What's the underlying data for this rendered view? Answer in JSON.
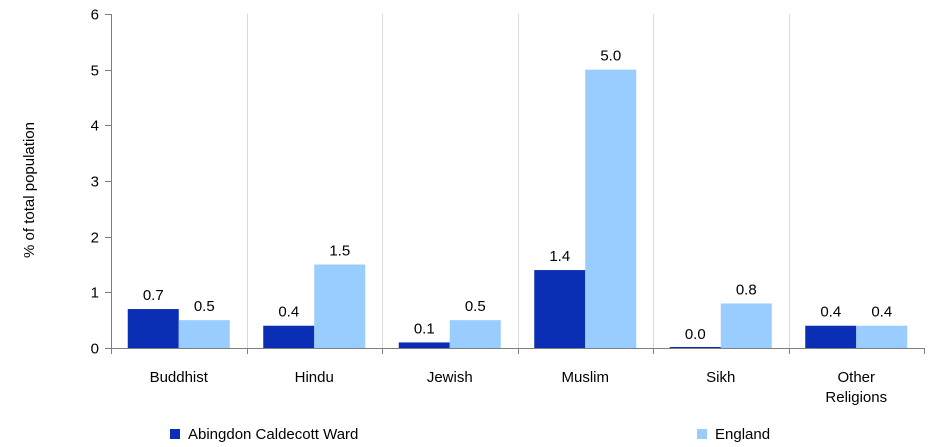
{
  "chart_data": {
    "type": "bar",
    "categories": [
      [
        "Buddhist"
      ],
      [
        "Hindu"
      ],
      [
        "Jewish"
      ],
      [
        "Muslim"
      ],
      [
        "Sikh"
      ],
      [
        "Other",
        "Religions"
      ]
    ],
    "series": [
      {
        "name": "Abingdon Caldecott Ward",
        "color": "#0a2fb4",
        "values": [
          0.7,
          0.4,
          0.1,
          1.4,
          0.0,
          0.4
        ],
        "labels": [
          "0.7",
          "0.4",
          "0.1",
          "1.4",
          "0.0",
          "0.4"
        ]
      },
      {
        "name": "England",
        "color": "#99ccff",
        "values": [
          0.5,
          1.5,
          0.5,
          5.0,
          0.8,
          0.4
        ],
        "labels": [
          "0.5",
          "1.5",
          "0.5",
          "5.0",
          "0.8",
          "0.4"
        ]
      }
    ],
    "title": "",
    "xlabel": "",
    "ylabel": "% of total population",
    "ylim": [
      0,
      6
    ],
    "yticks": [
      0,
      1,
      2,
      3,
      4,
      5,
      6
    ],
    "grid": "vertical-category-dividers",
    "legend": "bottom"
  }
}
